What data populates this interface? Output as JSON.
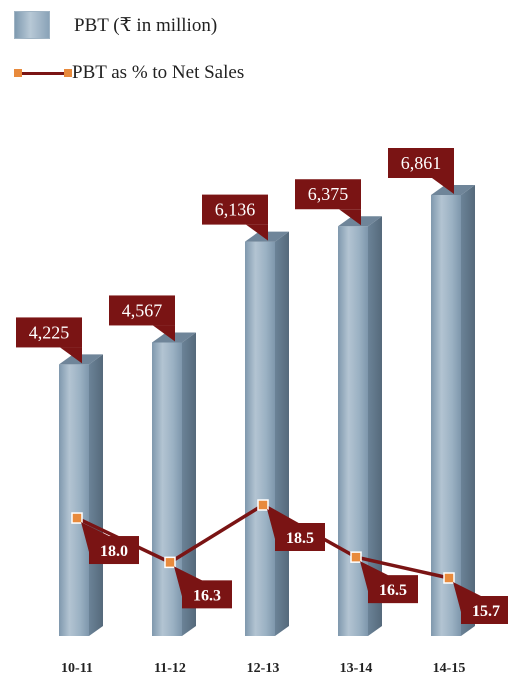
{
  "legend": {
    "bar_label": "PBT (₹ in million)",
    "line_label": "PBT as % to Net Sales"
  },
  "colors": {
    "bar": "#8fa7bb",
    "line": "#7a1414",
    "marker": "#e88a3c",
    "label_box": "#7a1414"
  },
  "chart_data": {
    "type": "bar",
    "categories": [
      "10-11",
      "11-12",
      "12-13",
      "13-14",
      "14-15"
    ],
    "series": [
      {
        "name": "PBT (₹ in million)",
        "type": "bar",
        "values": [
          4225,
          4567,
          6136,
          6375,
          6861
        ],
        "labels": [
          "4,225",
          "4,567",
          "6,136",
          "6,375",
          "6,861"
        ]
      },
      {
        "name": "PBT as % to Net Sales",
        "type": "line",
        "values": [
          18.0,
          16.3,
          18.5,
          16.5,
          15.7
        ],
        "labels": [
          "18.0",
          "16.3",
          "18.5",
          "16.5",
          "15.7"
        ]
      }
    ],
    "bar_ylim": [
      0,
      6861
    ],
    "line_ylim": [
      14.3,
      18.5
    ],
    "grid": false,
    "legend_placement": "top-left"
  }
}
